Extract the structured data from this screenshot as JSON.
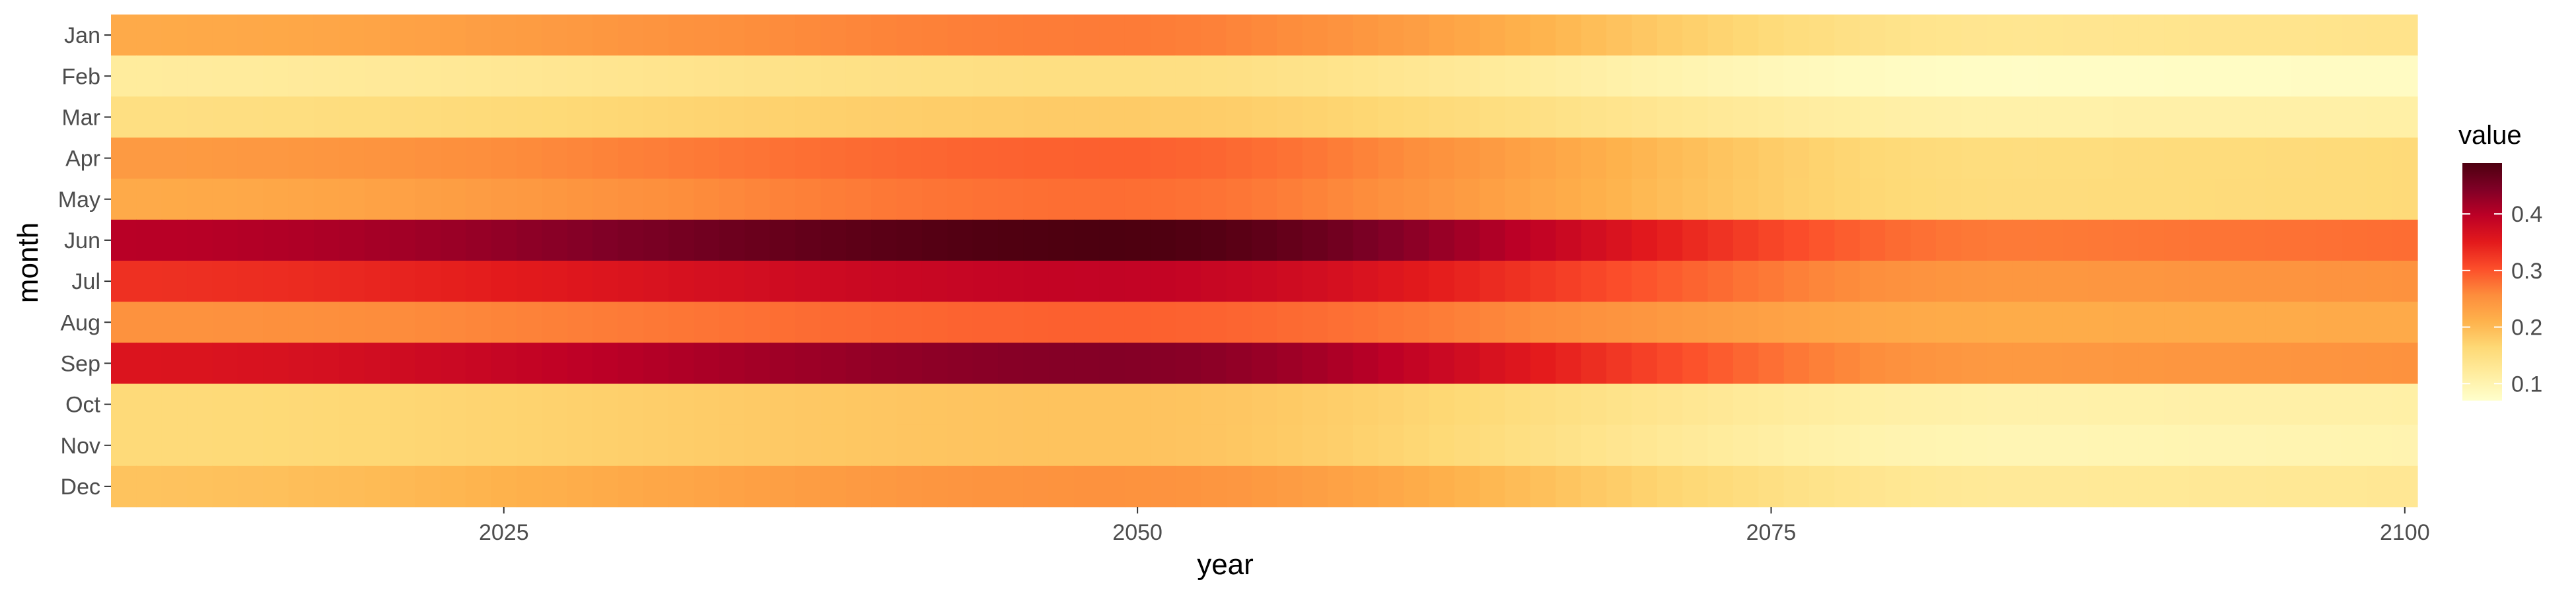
{
  "chart_data": {
    "type": "heatmap",
    "title": "",
    "xlabel": "year",
    "ylabel": "month",
    "xlim": [
      2009.5,
      2100.5
    ],
    "x_ticks": [
      2025,
      2050,
      2075,
      2100
    ],
    "x_tick_labels": [
      "2025",
      "2050",
      "2075",
      "2100"
    ],
    "year_start": 2010,
    "year_end": 2100,
    "months": [
      "Jan",
      "Feb",
      "Mar",
      "Apr",
      "May",
      "Jun",
      "Jul",
      "Aug",
      "Sep",
      "Oct",
      "Nov",
      "Dec"
    ],
    "month_profiles": [
      {
        "month": "Jan",
        "start": 0.22,
        "peak": 0.27,
        "end": 0.14
      },
      {
        "month": "Feb",
        "start": 0.12,
        "peak": 0.15,
        "end": 0.08
      },
      {
        "month": "Mar",
        "start": 0.15,
        "peak": 0.18,
        "end": 0.11
      },
      {
        "month": "Apr",
        "start": 0.24,
        "peak": 0.29,
        "end": 0.16
      },
      {
        "month": "May",
        "start": 0.22,
        "peak": 0.28,
        "end": 0.16
      },
      {
        "month": "Jun",
        "start": 0.4,
        "peak": 0.49,
        "end": 0.28
      },
      {
        "month": "Jul",
        "start": 0.33,
        "peak": 0.39,
        "end": 0.25
      },
      {
        "month": "Aug",
        "start": 0.25,
        "peak": 0.29,
        "end": 0.22
      },
      {
        "month": "Sep",
        "start": 0.36,
        "peak": 0.44,
        "end": 0.25
      },
      {
        "month": "Oct",
        "start": 0.16,
        "peak": 0.19,
        "end": 0.11
      },
      {
        "month": "Nov",
        "start": 0.16,
        "peak": 0.19,
        "end": 0.1
      },
      {
        "month": "Dec",
        "start": 0.19,
        "peak": 0.25,
        "end": 0.13
      }
    ],
    "profile_peak_year": 2049,
    "profile_trough_year": 2085,
    "legend": {
      "title": "value",
      "position": "right",
      "min": 0.07,
      "max": 0.49,
      "ticks": [
        0.1,
        0.2,
        0.3,
        0.4
      ],
      "tick_labels": [
        "0.1",
        "0.2",
        "0.3",
        "0.4"
      ]
    },
    "colorscale": [
      "#ffffcc",
      "#ffeda0",
      "#fed976",
      "#feb24c",
      "#fd8d3c",
      "#fc4e2a",
      "#e31a1c",
      "#bd0026",
      "#800026",
      "#4d0010"
    ]
  }
}
